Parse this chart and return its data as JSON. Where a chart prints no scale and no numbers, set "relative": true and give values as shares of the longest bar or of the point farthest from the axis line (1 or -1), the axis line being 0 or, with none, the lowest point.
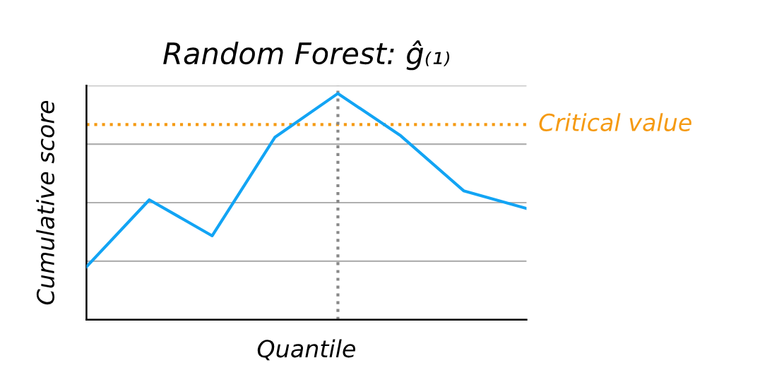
{
  "chart_data": {
    "type": "line",
    "title": "Random Forest: ĝ₍₁₎",
    "xlabel": "Quantile",
    "ylabel": "Cumulative score",
    "categories": [
      null,
      null,
      null,
      null,
      null,
      null,
      null,
      null
    ],
    "relative": true,
    "series": [
      {
        "color": "#12a4f4",
        "values": [
          0.234,
          0.53,
          0.371,
          0.807,
          1,
          0.813,
          0.57,
          0.492
        ]
      }
    ],
    "ref_lines": [
      {
        "axis": "y",
        "value": 0.863,
        "label": "Critical value",
        "color": "#f59a12",
        "line_style": "dotted"
      }
    ],
    "grid": "y",
    "tick_labels": false,
    "marker": "none",
    "line_style": "solid"
  }
}
